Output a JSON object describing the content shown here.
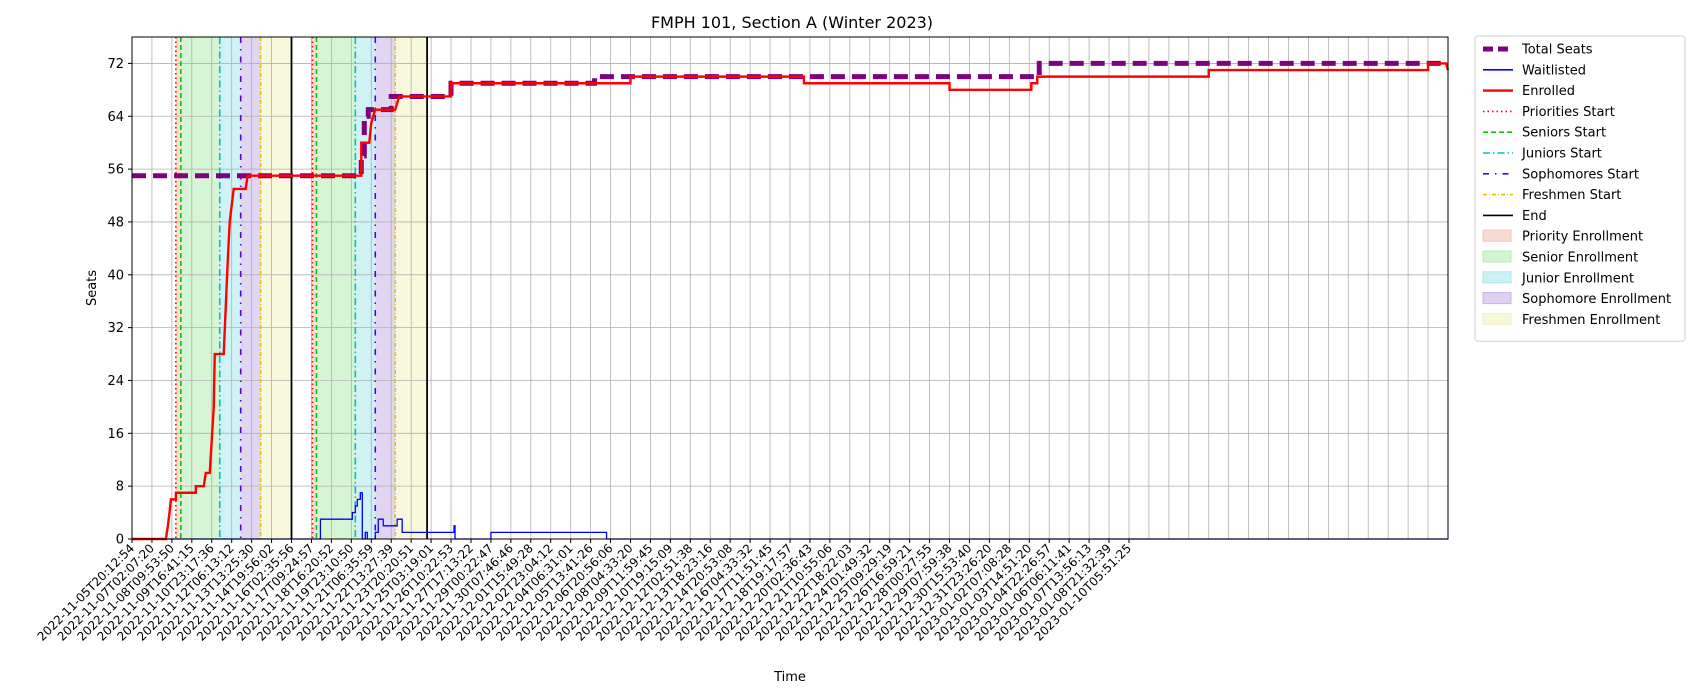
{
  "chart_data": {
    "type": "line",
    "title": "FMPH 101, Section A (Winter 2023)",
    "xlabel": "Time",
    "ylabel": "Seats",
    "ylim": [
      0,
      76
    ],
    "yticks": [
      0,
      8,
      16,
      24,
      32,
      40,
      48,
      56,
      64,
      72
    ],
    "grid": true,
    "legend_position": "outside right",
    "x_range_index": [
      0,
      66
    ],
    "x_tick_labels": [
      "2022-11-05T20:12:54",
      "2022-11-07T02:07:20",
      "2022-11-08T09:53:50",
      "2022-11-09T16:41:15",
      "2022-11-10T23:17:36",
      "2022-11-12T06:13:12",
      "2022-11-13T13:25:30",
      "2022-11-14T19:56:02",
      "2022-11-16T02:35:56",
      "2022-11-17T09:24:57",
      "2022-11-18T16:20:52",
      "2022-11-19T23:10:50",
      "2022-11-21T06:35:59",
      "2022-11-22T13:27:39",
      "2022-11-23T20:20:51",
      "2022-11-25T03:19:01",
      "2022-11-26T10:22:53",
      "2022-11-27T17:13:22",
      "2022-11-29T00:22:47",
      "2022-11-30T07:46:46",
      "2022-12-01T15:49:28",
      "2022-12-02T23:04:12",
      "2022-12-04T06:31:01",
      "2022-12-05T13:41:26",
      "2022-12-06T20:56:06",
      "2022-12-08T04:33:20",
      "2022-12-09T11:59:45",
      "2022-12-10T19:15:09",
      "2022-12-12T02:51:38",
      "2022-12-13T18:23:16",
      "2022-12-14T20:53:08",
      "2022-12-16T04:33:32",
      "2022-12-17T11:51:45",
      "2022-12-18T19:17:57",
      "2022-12-20T02:36:43",
      "2022-12-21T10:55:06",
      "2022-12-22T18:22:03",
      "2022-12-24T01:49:32",
      "2022-12-25T09:29:19",
      "2022-12-26T16:59:21",
      "2022-12-28T00:27:55",
      "2022-12-29T07:59:38",
      "2022-12-30T15:53:40",
      "2022-12-31T23:26:20",
      "2023-01-02T07:08:28",
      "2023-01-03T14:51:20",
      "2023-01-04T22:26:57",
      "2023-01-06T06:11:41",
      "2023-01-07T13:56:13",
      "2023-01-08T21:32:39",
      "2023-01-10T05:51:25"
    ],
    "legend": [
      {
        "label": "Total Seats",
        "kind": "line",
        "color": "#800080",
        "dash": "dashed-thick"
      },
      {
        "label": "Waitlisted",
        "kind": "line",
        "color": "#0000ff",
        "dash": "solid"
      },
      {
        "label": "Enrolled",
        "kind": "line",
        "color": "#ff0000",
        "dash": "solid"
      },
      {
        "label": "Priorities Start",
        "kind": "line",
        "color": "#ff0000",
        "dash": "dotted"
      },
      {
        "label": "Seniors Start",
        "kind": "line",
        "color": "#00cc00",
        "dash": "dashed"
      },
      {
        "label": "Juniors Start",
        "kind": "line",
        "color": "#00bfbf",
        "dash": "dashdot"
      },
      {
        "label": "Sophomores Start",
        "kind": "line",
        "color": "#5a00d0",
        "dash": "loose-dashdot"
      },
      {
        "label": "Freshmen Start",
        "kind": "line",
        "color": "#e6c300",
        "dash": "dashdot-small"
      },
      {
        "label": "End",
        "kind": "line",
        "color": "#000000",
        "dash": "solid"
      },
      {
        "label": "Priority Enrollment",
        "kind": "patch",
        "color": "#f4c2b5"
      },
      {
        "label": "Senior Enrollment",
        "kind": "patch",
        "color": "#b5ecb0"
      },
      {
        "label": "Junior Enrollment",
        "kind": "patch",
        "color": "#a8e8ec"
      },
      {
        "label": "Sophomore Enrollment",
        "kind": "patch",
        "color": "#c8b2ea"
      },
      {
        "label": "Freshmen Enrollment",
        "kind": "patch",
        "color": "#f2f2bf"
      }
    ],
    "phase_windows": [
      {
        "priority_start": 2.2,
        "senior_start": 2.45,
        "junior_start": 4.4,
        "sophomore_start": 5.45,
        "freshmen_start": 6.45,
        "end": 8.0
      },
      {
        "priority_start": 9.05,
        "senior_start": 9.25,
        "junior_start": 11.2,
        "sophomore_start": 12.2,
        "freshmen_start": 13.2,
        "end": 14.8
      }
    ],
    "series": [
      {
        "name": "Total Seats",
        "color": "#800080",
        "points": [
          [
            0,
            55
          ],
          [
            11.5,
            55
          ],
          [
            11.5,
            58
          ],
          [
            11.65,
            58
          ],
          [
            11.65,
            64
          ],
          [
            11.85,
            64
          ],
          [
            11.85,
            65
          ],
          [
            13.0,
            65
          ],
          [
            13.0,
            67
          ],
          [
            16.0,
            67
          ],
          [
            16.0,
            69
          ],
          [
            23.2,
            69
          ],
          [
            23.2,
            70
          ],
          [
            45.5,
            70
          ],
          [
            45.5,
            72
          ],
          [
            66.0,
            72
          ]
        ]
      },
      {
        "name": "Waitlisted",
        "color": "#0000ff",
        "points": [
          [
            0,
            0
          ],
          [
            9.45,
            0
          ],
          [
            9.45,
            3
          ],
          [
            11.05,
            3
          ],
          [
            11.05,
            4
          ],
          [
            11.2,
            4
          ],
          [
            11.2,
            5
          ],
          [
            11.3,
            5
          ],
          [
            11.3,
            6
          ],
          [
            11.45,
            6
          ],
          [
            11.45,
            7
          ],
          [
            11.55,
            7
          ],
          [
            11.55,
            0
          ],
          [
            11.7,
            0
          ],
          [
            11.7,
            1
          ],
          [
            11.8,
            1
          ],
          [
            11.8,
            0
          ],
          [
            12.2,
            0
          ],
          [
            12.2,
            1
          ],
          [
            12.35,
            1
          ],
          [
            12.35,
            3
          ],
          [
            12.6,
            3
          ],
          [
            12.6,
            2
          ],
          [
            13.3,
            2
          ],
          [
            13.3,
            3
          ],
          [
            13.55,
            3
          ],
          [
            13.55,
            1
          ],
          [
            16.15,
            1
          ],
          [
            16.15,
            2
          ],
          [
            16.2,
            2
          ],
          [
            16.2,
            0
          ],
          [
            18.0,
            0
          ],
          [
            18.0,
            1
          ],
          [
            23.8,
            1
          ],
          [
            23.8,
            0
          ],
          [
            66.0,
            0
          ]
        ]
      },
      {
        "name": "Enrolled",
        "color": "#ff0000",
        "points": [
          [
            0,
            0
          ],
          [
            1.5,
            0
          ],
          [
            1.7,
            0
          ],
          [
            1.8,
            2
          ],
          [
            1.88,
            4
          ],
          [
            1.95,
            6
          ],
          [
            2.2,
            6
          ],
          [
            2.2,
            7
          ],
          [
            3.2,
            7
          ],
          [
            3.2,
            8
          ],
          [
            3.6,
            8
          ],
          [
            3.7,
            10
          ],
          [
            3.9,
            10
          ],
          [
            4.0,
            15
          ],
          [
            4.1,
            20
          ],
          [
            4.15,
            28
          ],
          [
            4.6,
            28
          ],
          [
            4.7,
            35
          ],
          [
            4.8,
            42
          ],
          [
            4.9,
            48
          ],
          [
            5.1,
            53
          ],
          [
            5.7,
            53
          ],
          [
            5.8,
            55
          ],
          [
            11.5,
            55
          ],
          [
            11.5,
            60
          ],
          [
            11.9,
            60
          ],
          [
            12.0,
            63
          ],
          [
            12.2,
            65
          ],
          [
            13.2,
            65
          ],
          [
            13.4,
            67
          ],
          [
            16.0,
            67
          ],
          [
            16.0,
            69
          ],
          [
            25.0,
            69
          ],
          [
            25.0,
            70
          ],
          [
            33.7,
            70
          ],
          [
            33.7,
            69
          ],
          [
            41.0,
            69
          ],
          [
            41.0,
            68
          ],
          [
            45.1,
            68
          ],
          [
            45.1,
            69
          ],
          [
            45.4,
            69
          ],
          [
            45.4,
            70
          ],
          [
            54.0,
            70
          ],
          [
            54.0,
            71
          ],
          [
            65.0,
            71
          ],
          [
            65.0,
            72
          ],
          [
            65.9,
            72
          ],
          [
            66.0,
            71
          ]
        ]
      }
    ]
  }
}
